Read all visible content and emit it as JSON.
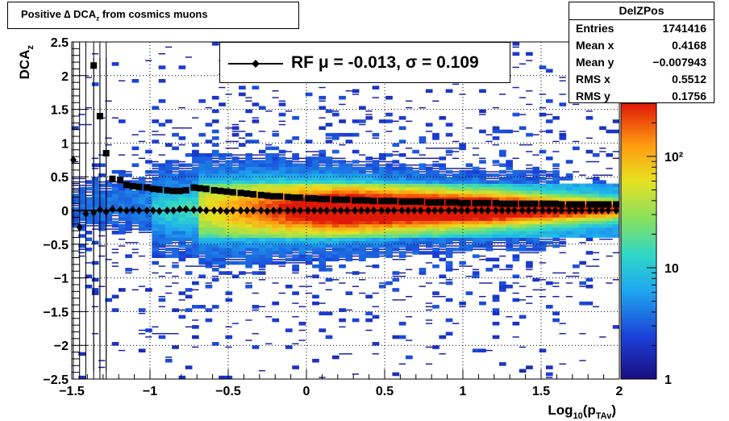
{
  "title": {
    "prefix": "Positive ∆ DCA",
    "sub": "z",
    "suffix": " from cosmics muons"
  },
  "stats": {
    "name": "DelZPos",
    "rows": [
      {
        "label": "Entries",
        "value": "1741416"
      },
      {
        "label": "Mean x",
        "value": "0.4168"
      },
      {
        "label": "Mean y",
        "value": "−0.007943"
      },
      {
        "label": "RMS x",
        "value": "0.5512"
      },
      {
        "label": "RMS y",
        "value": "0.1756"
      }
    ]
  },
  "legend": {
    "text": "RF μ = -0.013, σ =   0.109"
  },
  "chart_data": {
    "type": "heatmap",
    "title": "Positive ∆ DCA_z from cosmics muons",
    "xlabel": "Log10(p_TAv)",
    "ylabel": "DCA_z",
    "xlim": [
      -1.5,
      2
    ],
    "ylim": [
      -2.5,
      2.5
    ],
    "grid": true,
    "log_z": true,
    "x_ticks": [
      "−1.5",
      "−1",
      "−0.5",
      "0",
      "0.5",
      "1",
      "1.5",
      "2"
    ],
    "y_ticks": [
      "−2.5",
      "−2",
      "−1.5",
      "−1",
      "−0.5",
      "0",
      "0.5",
      "1",
      "1.5",
      "2",
      "2.5"
    ],
    "z_ticks": [
      "1",
      "10",
      "10²"
    ],
    "series": [
      {
        "marker": "diamond",
        "label": "RF μ = -0.013, σ =   0.109",
        "x": [
          -1.49,
          -1.45,
          -1.41,
          -1.36,
          -1.32,
          -1.28,
          -1.24,
          -1.19,
          -1.15,
          -1.11,
          -1.07,
          -1.02,
          -0.98,
          -0.94,
          -0.89,
          -0.85,
          -0.81,
          -0.77,
          -0.72,
          -0.68,
          -0.64,
          -0.59,
          -0.55,
          -0.51,
          -0.47,
          -0.42,
          -0.38,
          -0.34,
          -0.29,
          -0.25,
          -0.21,
          -0.17,
          -0.12,
          -0.08,
          -0.04,
          0.01,
          0.05,
          0.09,
          0.13,
          0.18,
          0.22,
          0.26,
          0.31,
          0.35,
          0.39,
          0.43,
          0.48,
          0.52,
          0.56,
          0.61,
          0.65,
          0.69,
          0.73,
          0.78,
          0.82,
          0.86,
          0.91,
          0.95,
          0.99,
          1.03,
          1.08,
          1.12,
          1.16,
          1.21,
          1.25,
          1.29,
          1.33,
          1.38,
          1.42,
          1.46,
          1.51,
          1.55,
          1.59,
          1.63,
          1.68,
          1.72,
          1.76,
          1.81,
          1.85,
          1.89,
          1.93,
          1.98
        ],
        "y": [
          0.75,
          -0.25,
          -0.05,
          -0.03,
          0.01,
          -0.02,
          0.02,
          0.01,
          0.0,
          0.01,
          0.0,
          0.0,
          0.0,
          -0.01,
          0.0,
          0.0,
          0.02,
          0.02,
          0.01,
          0.01,
          0.0,
          0.0,
          0.0,
          -0.01,
          0.0,
          0.0,
          0.0,
          0.0,
          0.0,
          -0.01,
          0.0,
          0.0,
          0.0,
          0.0,
          0.0,
          0.0,
          0.0,
          0.0,
          0.0,
          0.0,
          0.0,
          0.0,
          0.0,
          0.0,
          0.0,
          0.0,
          0.0,
          0.0,
          0.0,
          0.0,
          0.0,
          0.0,
          0.0,
          0.0,
          0.0,
          0.0,
          0.0,
          0.0,
          0.0,
          0.0,
          0.0,
          0.0,
          0.0,
          0.0,
          0.0,
          0.0,
          0.0,
          0.0,
          0.0,
          0.0,
          0.0,
          0.0,
          0.0,
          0.0,
          0.0,
          0.0,
          0.0,
          0.0,
          0.0,
          0.0,
          0.0,
          0.0
        ]
      },
      {
        "marker": "square",
        "x": [
          -1.36,
          -1.32,
          -1.28,
          -1.24,
          -1.19,
          -1.15,
          -1.11,
          -1.07,
          -1.02,
          -0.98,
          -0.94,
          -0.89,
          -0.85,
          -0.81,
          -0.77,
          -0.72,
          -0.68,
          -0.64,
          -0.59,
          -0.55,
          -0.51,
          -0.47,
          -0.42,
          -0.38,
          -0.34,
          -0.29,
          -0.25,
          -0.21,
          -0.17,
          -0.12,
          -0.08,
          -0.04,
          0.01,
          0.05,
          0.09,
          0.13,
          0.18,
          0.22,
          0.26,
          0.31,
          0.35,
          0.39,
          0.43,
          0.48,
          0.52,
          0.56,
          0.61,
          0.65,
          0.69,
          0.73,
          0.78,
          0.82,
          0.86,
          0.91,
          0.95,
          0.99,
          1.03,
          1.08,
          1.12,
          1.16,
          1.21,
          1.25,
          1.29,
          1.33,
          1.38,
          1.42,
          1.46,
          1.51,
          1.55,
          1.59,
          1.63,
          1.68,
          1.72,
          1.76,
          1.81,
          1.85,
          1.89,
          1.93,
          1.98
        ],
        "y": [
          2.15,
          1.4,
          0.85,
          0.47,
          0.45,
          0.38,
          0.36,
          0.35,
          0.34,
          0.32,
          0.31,
          0.3,
          0.29,
          0.29,
          0.3,
          0.34,
          0.33,
          0.32,
          0.3,
          0.29,
          0.28,
          0.27,
          0.26,
          0.25,
          0.24,
          0.23,
          0.22,
          0.21,
          0.21,
          0.2,
          0.19,
          0.19,
          0.18,
          0.18,
          0.17,
          0.17,
          0.16,
          0.16,
          0.16,
          0.15,
          0.15,
          0.15,
          0.14,
          0.14,
          0.14,
          0.14,
          0.13,
          0.13,
          0.13,
          0.13,
          0.12,
          0.12,
          0.12,
          0.12,
          0.12,
          0.11,
          0.11,
          0.11,
          0.11,
          0.11,
          0.11,
          0.1,
          0.1,
          0.1,
          0.1,
          0.1,
          0.1,
          0.1,
          0.1,
          0.1,
          0.09,
          0.09,
          0.09,
          0.09,
          0.09,
          0.09,
          0.09,
          0.09,
          0.09
        ]
      }
    ]
  }
}
